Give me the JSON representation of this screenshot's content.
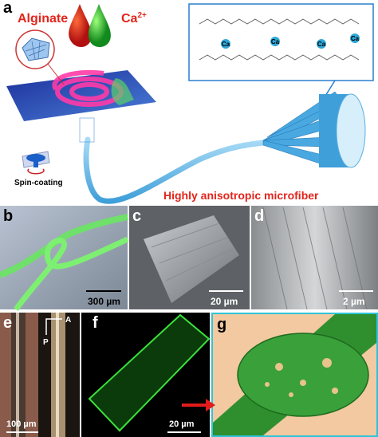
{
  "panel_a": {
    "label": "a",
    "alginate": "Alginate",
    "calcium": {
      "symbol": "Ca",
      "charge": "2+"
    },
    "ions": [
      "Ca",
      "Ca",
      "Ca",
      "Ca"
    ],
    "process": "Spin-coating",
    "caption": "Highly anisotropic microfiber"
  },
  "panels": [
    {
      "label": "b",
      "scale_bar": "300 µm"
    },
    {
      "label": "c",
      "scale_bar": "20 µm"
    },
    {
      "label": "d",
      "scale_bar": "2 µm"
    },
    {
      "label": "e",
      "scale_bar": "100 µm",
      "analyzer": "A",
      "polarizer": "P"
    },
    {
      "label": "f",
      "scale_bar": "20 µm"
    },
    {
      "label": "g"
    }
  ]
}
